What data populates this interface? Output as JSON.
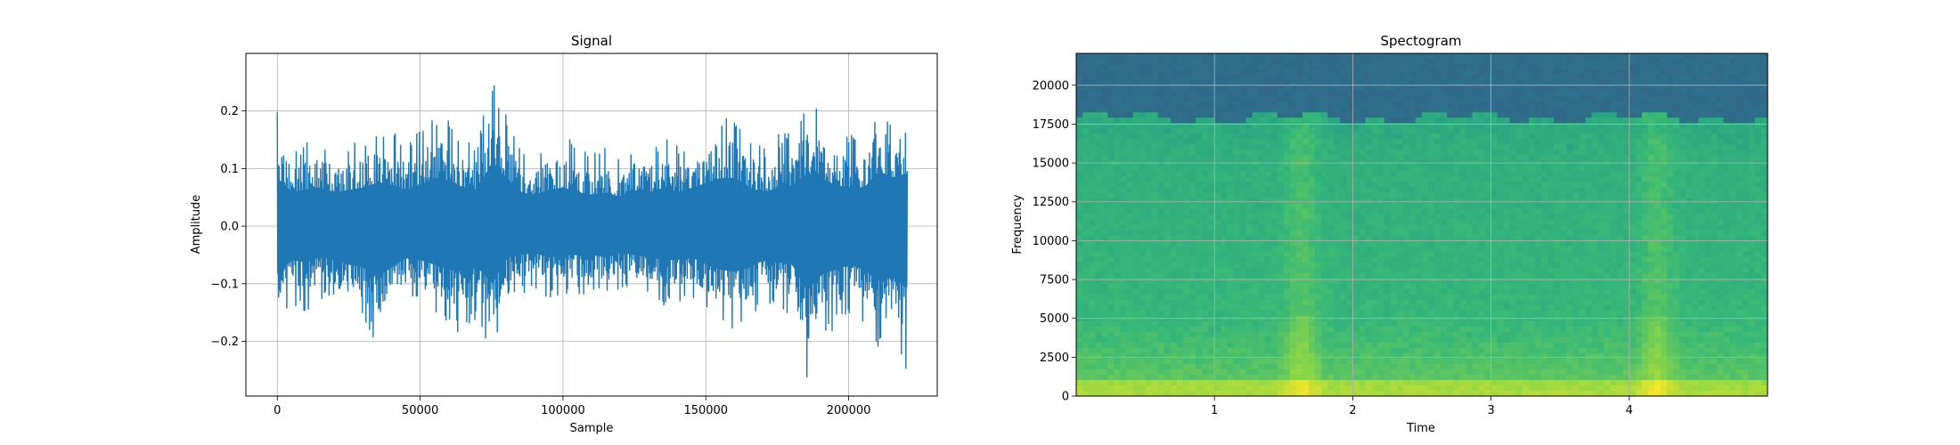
{
  "colors": {
    "signal_line": "#1f77b4",
    "grid": "#b0b0b0",
    "spec_top_band": "#2a6d8e",
    "spec_mid": "#3aa68c",
    "spec_low": "#c8e020"
  },
  "chart_data": [
    {
      "type": "line",
      "title": "Signal",
      "xlabel": "Sample",
      "ylabel": "Amplitude",
      "xlim": [
        -11000,
        231000
      ],
      "ylim": [
        -0.295,
        0.3
      ],
      "x_ticks": [
        0,
        50000,
        100000,
        150000,
        200000
      ],
      "x_tick_labels": [
        "0",
        "50000",
        "100000",
        "150000",
        "200000"
      ],
      "y_ticks": [
        -0.2,
        -0.1,
        0.0,
        0.1,
        0.2
      ],
      "y_tick_labels": [
        "−0.2",
        "−0.1",
        "0.0",
        "0.1",
        "0.2"
      ],
      "grid": true,
      "series": [
        {
          "x_start": 0,
          "x_end": 220500,
          "envelope_max": [
            0.2,
            0.14,
            0.15,
            0.16,
            0.14,
            0.15,
            0.16,
            0.18,
            0.17,
            0.15,
            0.17,
            0.2,
            0.19,
            0.16,
            0.15,
            0.27,
            0.2,
            0.14,
            0.13,
            0.15,
            0.16,
            0.14,
            0.13,
            0.14,
            0.12,
            0.15,
            0.14,
            0.16,
            0.14,
            0.16,
            0.18,
            0.2,
            0.2,
            0.16,
            0.14,
            0.16,
            0.17,
            0.22,
            0.2,
            0.17,
            0.16,
            0.16,
            0.23,
            0.2,
            0.22
          ],
          "envelope_min": [
            -0.2,
            -0.14,
            -0.15,
            -0.13,
            -0.14,
            -0.16,
            -0.17,
            -0.21,
            -0.17,
            -0.13,
            -0.14,
            -0.16,
            -0.18,
            -0.19,
            -0.17,
            -0.24,
            -0.13,
            -0.12,
            -0.11,
            -0.13,
            -0.12,
            -0.12,
            -0.12,
            -0.13,
            -0.11,
            -0.12,
            -0.13,
            -0.14,
            -0.14,
            -0.13,
            -0.16,
            -0.18,
            -0.19,
            -0.17,
            -0.14,
            -0.15,
            -0.16,
            -0.27,
            -0.2,
            -0.18,
            -0.16,
            -0.18,
            -0.23,
            -0.21,
            -0.26
          ]
        }
      ]
    },
    {
      "type": "heatmap",
      "title": "Spectogram",
      "xlabel": "Time",
      "ylabel": "Frequency",
      "xlim": [
        0,
        5.0
      ],
      "ylim": [
        0,
        22050
      ],
      "x_ticks": [
        1,
        2,
        3,
        4
      ],
      "x_tick_labels": [
        "1",
        "2",
        "3",
        "4"
      ],
      "y_ticks": [
        0,
        2500,
        5000,
        7500,
        10000,
        12500,
        15000,
        17500,
        20000
      ],
      "y_tick_labels": [
        "0",
        "2500",
        "5000",
        "7500",
        "10000",
        "12500",
        "15000",
        "17500",
        "20000"
      ],
      "grid": true,
      "cutoff_frequency": 18500,
      "bright_time_bands": [
        1.63,
        4.2
      ],
      "colormap": "viridis"
    }
  ]
}
